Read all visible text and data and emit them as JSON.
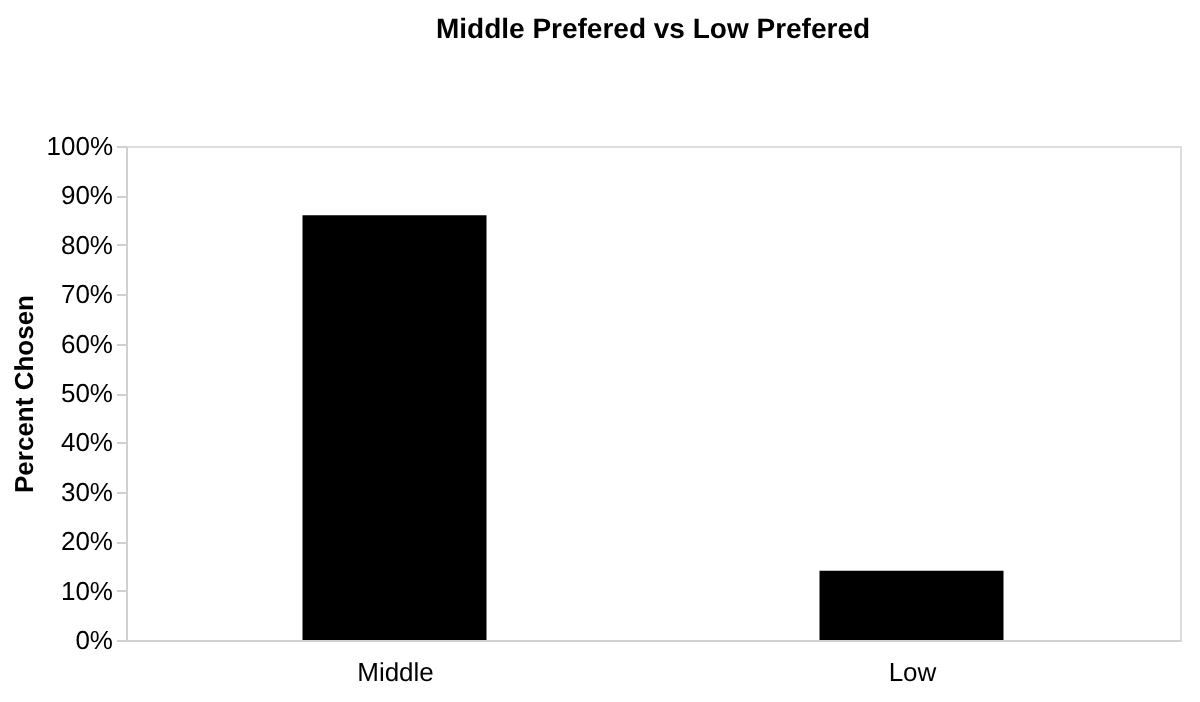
{
  "chart_data": {
    "type": "bar",
    "title": "Middle Prefered vs Low Prefered",
    "ylabel": "Percent Chosen",
    "categories": [
      "Middle",
      "Low"
    ],
    "values": [
      86,
      14
    ],
    "color": "#000000",
    "ylim": [
      0,
      100
    ],
    "yticks": [
      {
        "value": 0,
        "label": "0%"
      },
      {
        "value": 10,
        "label": "10%"
      },
      {
        "value": 20,
        "label": "20%"
      },
      {
        "value": 30,
        "label": "30%"
      },
      {
        "value": 40,
        "label": "40%"
      },
      {
        "value": 50,
        "label": "50%"
      },
      {
        "value": 60,
        "label": "60%"
      },
      {
        "value": 70,
        "label": "70%"
      },
      {
        "value": 80,
        "label": "80%"
      },
      {
        "value": 90,
        "label": "90%"
      },
      {
        "value": 100,
        "label": "100%"
      }
    ],
    "grid": false
  }
}
